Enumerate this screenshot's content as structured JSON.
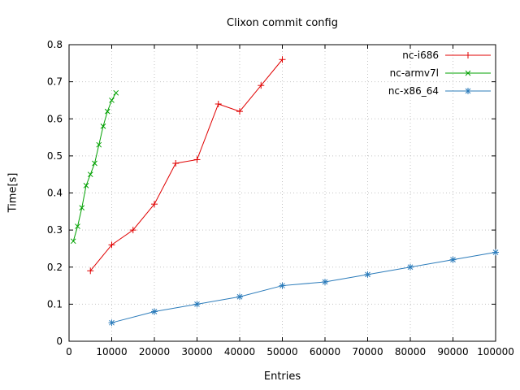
{
  "chart_data": {
    "type": "line",
    "title": "Clixon commit config",
    "xlabel": "Entries",
    "ylabel": "Time[s]",
    "xlim": [
      0,
      100000
    ],
    "ylim": [
      0,
      0.8
    ],
    "xticks": [
      0,
      10000,
      20000,
      30000,
      40000,
      50000,
      60000,
      70000,
      80000,
      90000,
      100000
    ],
    "yticks": [
      0,
      0.1,
      0.2,
      0.3,
      0.4,
      0.5,
      0.6,
      0.7,
      0.8
    ],
    "grid": true,
    "legend_position": "top-right",
    "colors": {
      "grid": "#c4c4c4",
      "border": "#000000"
    },
    "series": [
      {
        "name": "nc-i686",
        "color": "#e00000",
        "marker": "plus",
        "x": [
          5000,
          10000,
          15000,
          20000,
          25000,
          30000,
          35000,
          40000,
          45000,
          50000
        ],
        "y": [
          0.19,
          0.26,
          0.3,
          0.37,
          0.48,
          0.49,
          0.64,
          0.62,
          0.69,
          0.76
        ]
      },
      {
        "name": "nc-armv7l",
        "color": "#00a000",
        "marker": "cross",
        "x": [
          1000,
          2000,
          3000,
          4000,
          5000,
          6000,
          7000,
          8000,
          9000,
          10000,
          11000
        ],
        "y": [
          0.27,
          0.31,
          0.36,
          0.42,
          0.45,
          0.48,
          0.53,
          0.58,
          0.62,
          0.65,
          0.67
        ]
      },
      {
        "name": "nc-x86_64",
        "color": "#2b7bba",
        "marker": "asterisk",
        "x": [
          10000,
          20000,
          30000,
          40000,
          50000,
          60000,
          70000,
          80000,
          90000,
          100000
        ],
        "y": [
          0.05,
          0.08,
          0.1,
          0.12,
          0.15,
          0.16,
          0.18,
          0.2,
          0.22,
          0.24
        ]
      }
    ]
  }
}
